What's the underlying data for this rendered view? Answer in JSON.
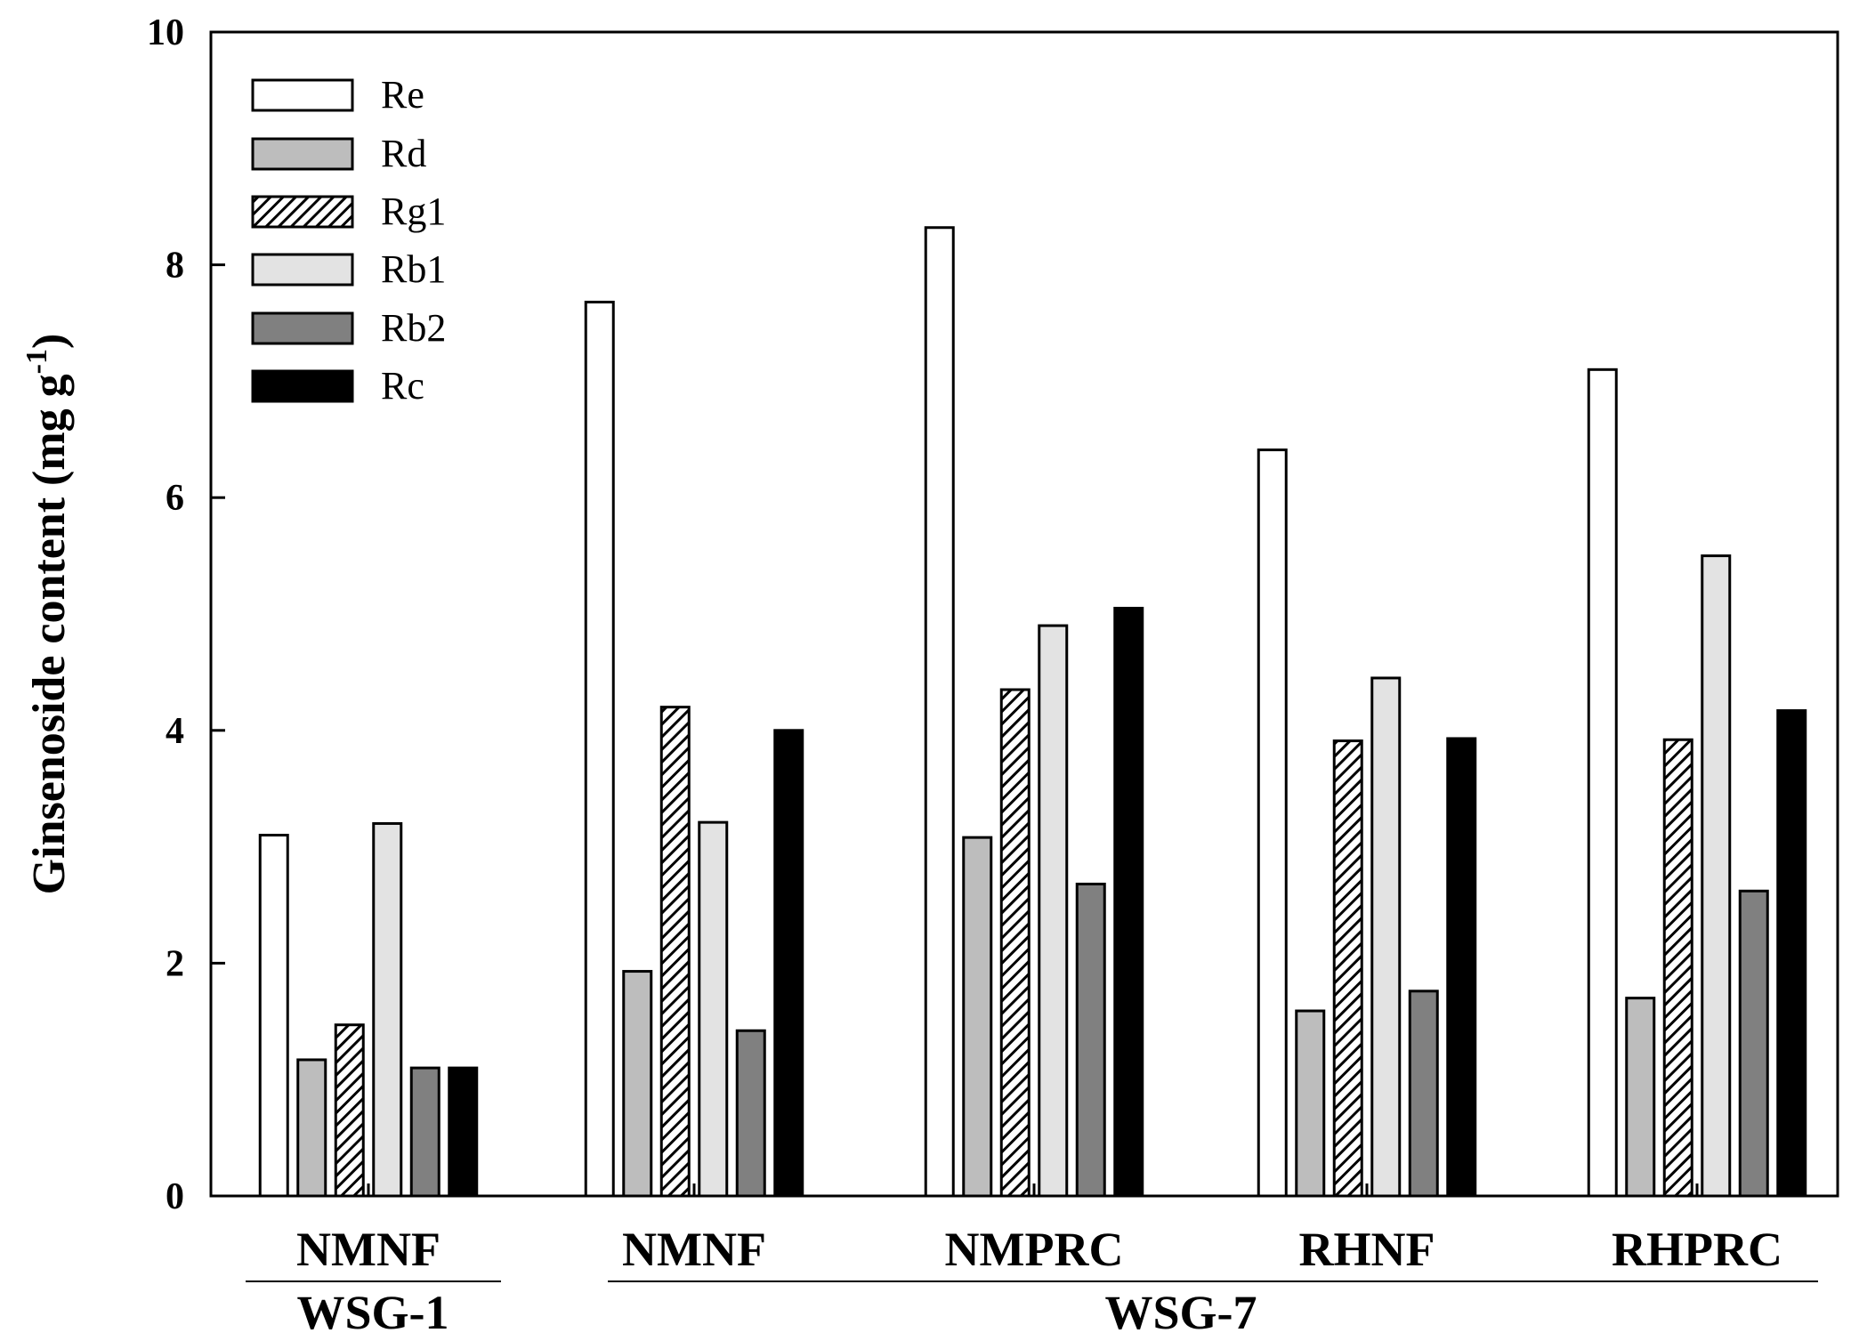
{
  "chart_data": {
    "type": "bar",
    "ylabel": "Ginsenoside content (mg g",
    "ylabel_sup": "-1",
    "ylabel_close": ")",
    "ylim": [
      0,
      10
    ],
    "yticks": [
      0,
      2,
      4,
      6,
      8,
      10
    ],
    "categories": [
      "NMNF",
      "NMNF",
      "NMPRC",
      "RHNF",
      "RHPRC"
    ],
    "groups": [
      {
        "label": "WSG-1",
        "categories": [
          0
        ]
      },
      {
        "label": "WSG-7",
        "categories": [
          1,
          2,
          3,
          4
        ]
      }
    ],
    "series": [
      {
        "name": "Re",
        "fill": "#ffffff",
        "pattern": "none",
        "values": [
          3.1,
          7.68,
          8.32,
          6.41,
          7.1
        ]
      },
      {
        "name": "Rd",
        "fill": "#bdbdbd",
        "pattern": "none",
        "values": [
          1.17,
          1.93,
          3.08,
          1.59,
          1.7
        ]
      },
      {
        "name": "Rg1",
        "fill": "#ffffff",
        "pattern": "hatch",
        "values": [
          1.47,
          4.2,
          4.35,
          3.91,
          3.92
        ]
      },
      {
        "name": "Rb1",
        "fill": "#e3e3e3",
        "pattern": "none",
        "values": [
          3.2,
          3.21,
          4.9,
          4.45,
          5.5
        ]
      },
      {
        "name": "Rb2",
        "fill": "#808080",
        "pattern": "none",
        "values": [
          1.1,
          1.42,
          2.68,
          1.76,
          2.62
        ]
      },
      {
        "name": "Rc",
        "fill": "#000000",
        "pattern": "none",
        "values": [
          1.1,
          4.0,
          5.05,
          3.93,
          4.17
        ]
      }
    ],
    "legend_position": "top-left"
  }
}
